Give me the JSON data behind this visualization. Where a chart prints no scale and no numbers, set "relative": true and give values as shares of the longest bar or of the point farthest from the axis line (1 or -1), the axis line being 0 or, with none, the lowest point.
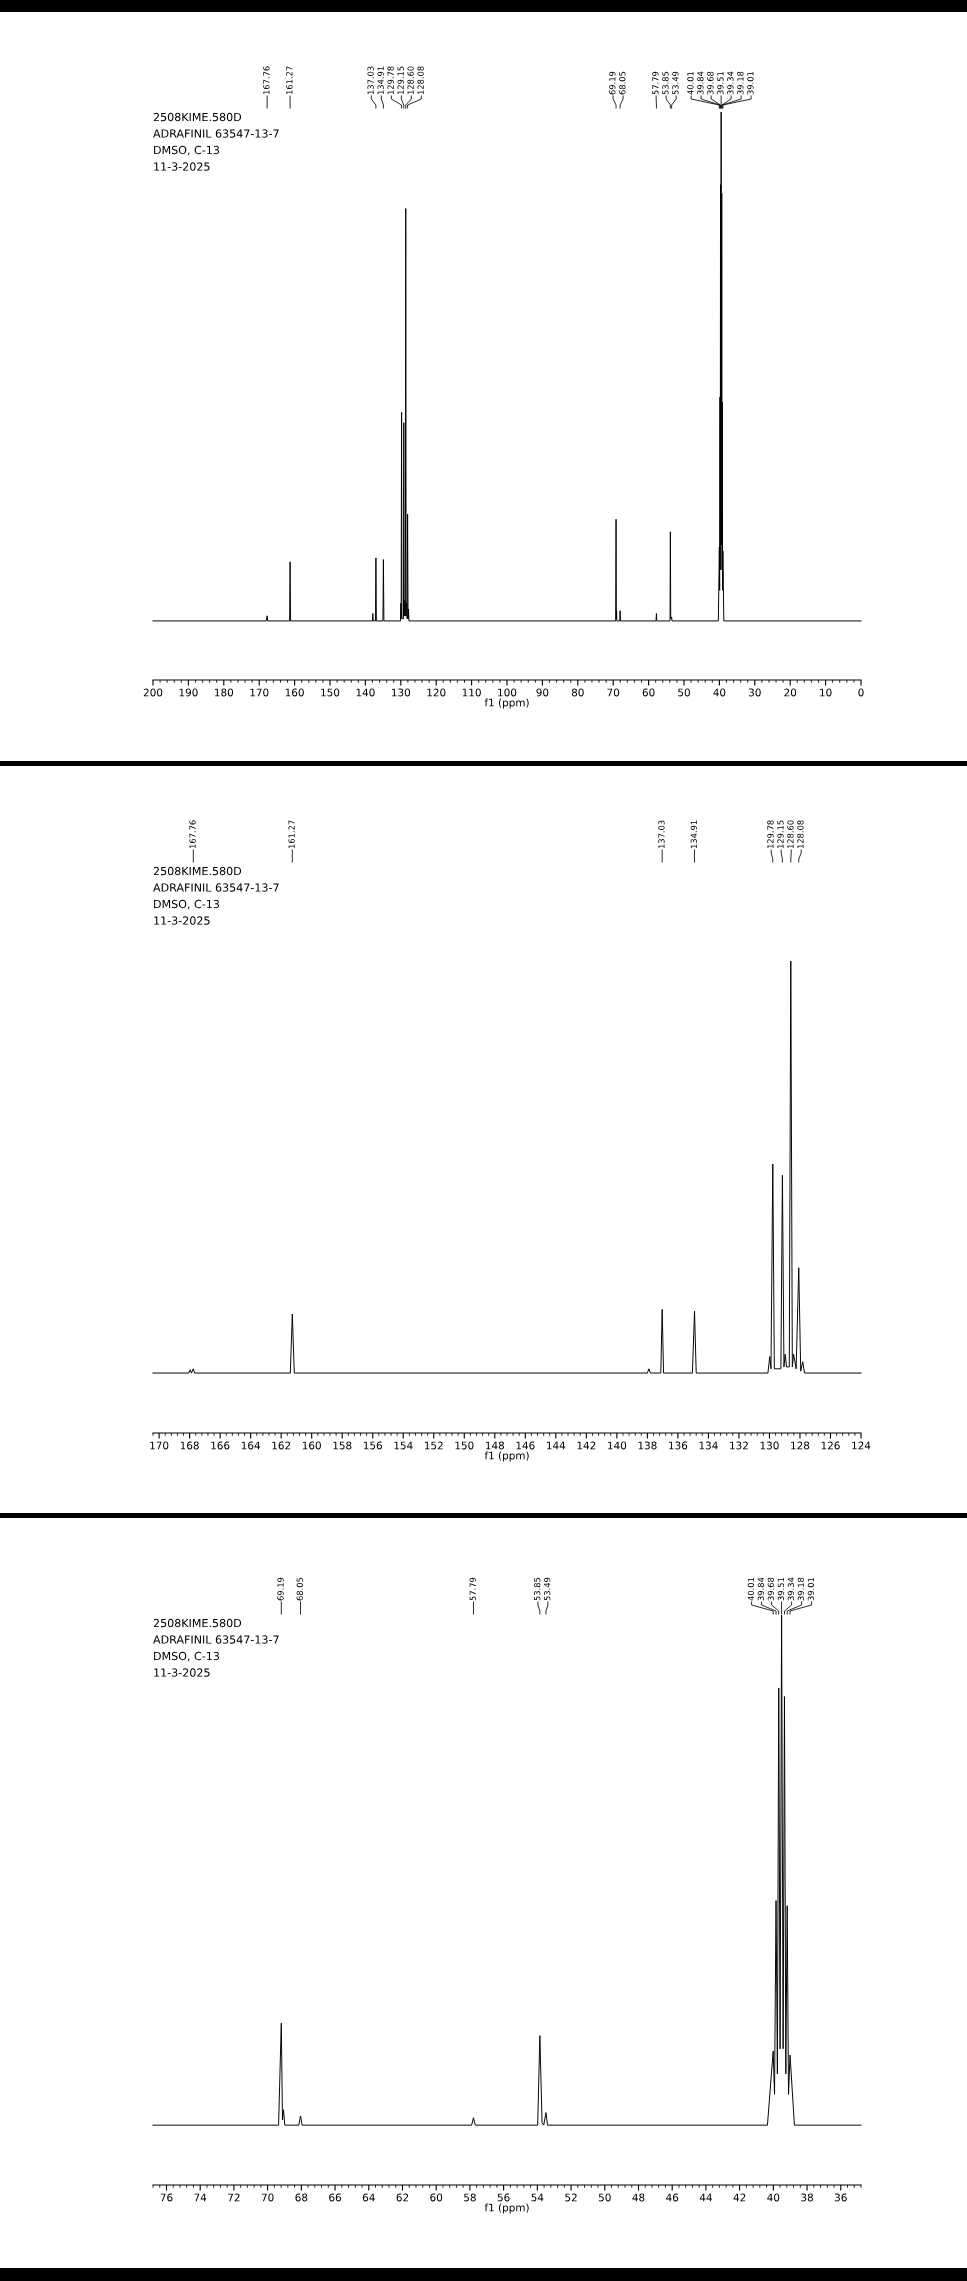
{
  "chart_data": [
    {
      "type": "line",
      "xlabel": "f1 (ppm)",
      "color": "#000000",
      "relative": true,
      "x": [
        200,
        168.0,
        167.76,
        167.6,
        161.4,
        161.27,
        161.14,
        138.0,
        137.9,
        137.8,
        137.15,
        137.03,
        136.9,
        135.05,
        134.91,
        134.78,
        130.1,
        129.98,
        129.9,
        129.78,
        129.68,
        129.25,
        129.15,
        129.05,
        128.95,
        128.85,
        128.7,
        128.6,
        128.5,
        128.4,
        128.2,
        128.08,
        127.95,
        127.82,
        127.7,
        69.3,
        69.19,
        69.12,
        69.05,
        68.98,
        68.15,
        68.05,
        67.95,
        57.9,
        57.79,
        57.7,
        53.95,
        53.85,
        53.75,
        53.49,
        53.4,
        40.3,
        40.01,
        39.93,
        39.84,
        39.76,
        39.68,
        39.6,
        39.51,
        39.42,
        39.34,
        39.26,
        39.18,
        39.1,
        39.01,
        38.75,
        0
      ],
      "values": [
        0.104,
        0.104,
        0.113,
        0.104,
        0.104,
        0.208,
        0.104,
        0.104,
        0.117,
        0.104,
        0.104,
        0.215,
        0.104,
        0.104,
        0.212,
        0.104,
        0.104,
        0.135,
        0.108,
        0.471,
        0.108,
        0.108,
        0.453,
        0.113,
        0.14,
        0.113,
        0.113,
        0.83,
        0.113,
        0.136,
        0.108,
        0.292,
        0.108,
        0.125,
        0.104,
        0.104,
        0.283,
        0.108,
        0.122,
        0.104,
        0.104,
        0.122,
        0.104,
        0.104,
        0.117,
        0.104,
        0.104,
        0.261,
        0.108,
        0.111,
        0.104,
        0.104,
        0.234,
        0.158,
        0.498,
        0.194,
        0.872,
        0.238,
        1,
        0.238,
        0.857,
        0.194,
        0.489,
        0.158,
        0.227,
        0.104,
        0.104
      ],
      "xlim": [
        200,
        0
      ],
      "xticks": [
        0,
        {
          "value": 2,
          "label": null
        },
        {
          "value": 4,
          "label": null
        },
        {
          "value": 6,
          "label": null
        },
        {
          "value": 8,
          "label": null
        },
        10,
        {
          "value": 12,
          "label": null
        },
        {
          "value": 14,
          "label": null
        },
        {
          "value": 16,
          "label": null
        },
        {
          "value": 18,
          "label": null
        },
        20,
        {
          "value": 22,
          "label": null
        },
        {
          "value": 24,
          "label": null
        },
        {
          "value": 26,
          "label": null
        },
        {
          "value": 28,
          "label": null
        },
        30,
        {
          "value": 32,
          "label": null
        },
        {
          "value": 34,
          "label": null
        },
        {
          "value": 36,
          "label": null
        },
        {
          "value": 38,
          "label": null
        },
        40,
        {
          "value": 42,
          "label": null
        },
        {
          "value": 44,
          "label": null
        },
        {
          "value": 46,
          "label": null
        },
        {
          "value": 48,
          "label": null
        },
        50,
        {
          "value": 52,
          "label": null
        },
        {
          "value": 54,
          "label": null
        },
        {
          "value": 56,
          "label": null
        },
        {
          "value": 58,
          "label": null
        },
        60,
        {
          "value": 62,
          "label": null
        },
        {
          "value": 64,
          "label": null
        },
        {
          "value": 66,
          "label": null
        },
        {
          "value": 68,
          "label": null
        },
        70,
        {
          "value": 72,
          "label": null
        },
        {
          "value": 74,
          "label": null
        },
        {
          "value": 76,
          "label": null
        },
        {
          "value": 78,
          "label": null
        },
        80,
        {
          "value": 82,
          "label": null
        },
        {
          "value": 84,
          "label": null
        },
        {
          "value": 86,
          "label": null
        },
        {
          "value": 88,
          "label": null
        },
        90,
        {
          "value": 92,
          "label": null
        },
        {
          "value": 94,
          "label": null
        },
        {
          "value": 96,
          "label": null
        },
        {
          "value": 98,
          "label": null
        },
        100,
        {
          "value": 102,
          "label": null
        },
        {
          "value": 104,
          "label": null
        },
        {
          "value": 106,
          "label": null
        },
        {
          "value": 108,
          "label": null
        },
        110,
        {
          "value": 112,
          "label": null
        },
        {
          "value": 114,
          "label": null
        },
        {
          "value": 116,
          "label": null
        },
        {
          "value": 118,
          "label": null
        },
        120,
        {
          "value": 122,
          "label": null
        },
        {
          "value": 124,
          "label": null
        },
        {
          "value": 126,
          "label": null
        },
        {
          "value": 128,
          "label": null
        },
        130,
        {
          "value": 132,
          "label": null
        },
        {
          "value": 134,
          "label": null
        },
        {
          "value": 136,
          "label": null
        },
        {
          "value": 138,
          "label": null
        },
        140,
        {
          "value": 142,
          "label": null
        },
        {
          "value": 144,
          "label": null
        },
        {
          "value": 146,
          "label": null
        },
        {
          "value": 148,
          "label": null
        },
        150,
        {
          "value": 152,
          "label": null
        },
        {
          "value": 154,
          "label": null
        },
        {
          "value": 156,
          "label": null
        },
        {
          "value": 158,
          "label": null
        },
        160,
        {
          "value": 162,
          "label": null
        },
        {
          "value": 164,
          "label": null
        },
        {
          "value": 166,
          "label": null
        },
        {
          "value": 168,
          "label": null
        },
        170,
        {
          "value": 172,
          "label": null
        },
        {
          "value": 174,
          "label": null
        },
        {
          "value": 176,
          "label": null
        },
        {
          "value": 178,
          "label": null
        },
        180,
        {
          "value": 182,
          "label": null
        },
        {
          "value": 184,
          "label": null
        },
        {
          "value": 186,
          "label": null
        },
        {
          "value": 188,
          "label": null
        },
        190,
        {
          "value": 192,
          "label": null
        },
        {
          "value": 194,
          "label": null
        },
        {
          "value": 196,
          "label": null
        },
        {
          "value": 198,
          "label": null
        },
        200
      ],
      "annotations": [
        "2508KIME.580D",
        "ADRAFINIL 63547-13-7",
        "DMSO, C-13",
        "11-3-2025",
        {
          "text": "167.76",
          "x": 167.76
        },
        {
          "text": "161.27",
          "x": 161.27
        },
        {
          "text": "137.03",
          "x": 137.03
        },
        {
          "text": "134.91",
          "x": 134.91
        },
        {
          "text": "129.78",
          "x": 129.78
        },
        {
          "text": "129.15",
          "x": 129.15
        },
        {
          "text": "128.60",
          "x": 128.6
        },
        {
          "text": "128.08",
          "x": 128.08
        },
        {
          "text": "69.19",
          "x": 69.19
        },
        {
          "text": "68.05",
          "x": 68.05
        },
        {
          "text": "57.79",
          "x": 57.79
        },
        {
          "text": "53.85",
          "x": 53.85
        },
        {
          "text": "53.49",
          "x": 53.49
        },
        {
          "text": "40.01",
          "x": 40.01
        },
        {
          "text": "39.84",
          "x": 39.84
        },
        {
          "text": "39.68",
          "x": 39.68
        },
        {
          "text": "39.51",
          "x": 39.51
        },
        {
          "text": "39.34",
          "x": 39.34
        },
        {
          "text": "39.18",
          "x": 39.18
        },
        {
          "text": "39.01",
          "x": 39.01
        }
      ]
    },
    {
      "type": "line",
      "xlabel": "f1 (ppm)",
      "color": "#000000",
      "relative": true,
      "x": [
        170.4,
        168.05,
        167.97,
        167.88,
        167.76,
        167.67,
        161.4,
        161.27,
        161.14,
        138.0,
        137.9,
        137.8,
        137.12,
        137.03,
        136.94,
        135.05,
        134.91,
        134.8,
        130.1,
        129.98,
        129.9,
        129.78,
        129.68,
        129.25,
        129.15,
        129.05,
        128.97,
        128.88,
        128.7,
        128.6,
        128.5,
        128.42,
        128.25,
        128.08,
        127.95,
        127.82,
        127.7,
        124
      ],
      "values": [
        0.127,
        0.127,
        0.134,
        0.127,
        0.136,
        0.127,
        0.127,
        0.252,
        0.127,
        0.127,
        0.136,
        0.127,
        0.127,
        0.262,
        0.127,
        0.127,
        0.258,
        0.127,
        0.127,
        0.162,
        0.136,
        0.57,
        0.136,
        0.136,
        0.546,
        0.14,
        0.167,
        0.14,
        0.14,
        1,
        0.14,
        0.167,
        0.136,
        0.35,
        0.131,
        0.151,
        0.127,
        0.127
      ],
      "xlim": [
        170.4,
        124
      ],
      "xticks": [
        124,
        {
          "value": 124.4,
          "label": null
        },
        {
          "value": 124.8,
          "label": null
        },
        {
          "value": 125.2,
          "label": null
        },
        {
          "value": 125.6,
          "label": null
        },
        126,
        {
          "value": 126.4,
          "label": null
        },
        {
          "value": 126.8,
          "label": null
        },
        {
          "value": 127.2,
          "label": null
        },
        {
          "value": 127.6,
          "label": null
        },
        128,
        {
          "value": 128.4,
          "label": null
        },
        {
          "value": 128.8,
          "label": null
        },
        {
          "value": 129.2,
          "label": null
        },
        {
          "value": 129.6,
          "label": null
        },
        130,
        {
          "value": 130.4,
          "label": null
        },
        {
          "value": 130.8,
          "label": null
        },
        {
          "value": 131.2,
          "label": null
        },
        {
          "value": 131.6,
          "label": null
        },
        132,
        {
          "value": 132.4,
          "label": null
        },
        {
          "value": 132.8,
          "label": null
        },
        {
          "value": 133.2,
          "label": null
        },
        {
          "value": 133.6,
          "label": null
        },
        134,
        {
          "value": 134.4,
          "label": null
        },
        {
          "value": 134.8,
          "label": null
        },
        {
          "value": 135.2,
          "label": null
        },
        {
          "value": 135.6,
          "label": null
        },
        136,
        {
          "value": 136.4,
          "label": null
        },
        {
          "value": 136.8,
          "label": null
        },
        {
          "value": 137.2,
          "label": null
        },
        {
          "value": 137.6,
          "label": null
        },
        138,
        {
          "value": 138.4,
          "label": null
        },
        {
          "value": 138.8,
          "label": null
        },
        {
          "value": 139.2,
          "label": null
        },
        {
          "value": 139.6,
          "label": null
        },
        140,
        {
          "value": 140.4,
          "label": null
        },
        {
          "value": 140.8,
          "label": null
        },
        {
          "value": 141.2,
          "label": null
        },
        {
          "value": 141.6,
          "label": null
        },
        142,
        {
          "value": 142.4,
          "label": null
        },
        {
          "value": 142.8,
          "label": null
        },
        {
          "value": 143.2,
          "label": null
        },
        {
          "value": 143.6,
          "label": null
        },
        144,
        {
          "value": 144.4,
          "label": null
        },
        {
          "value": 144.8,
          "label": null
        },
        {
          "value": 145.2,
          "label": null
        },
        {
          "value": 145.6,
          "label": null
        },
        146,
        {
          "value": 146.4,
          "label": null
        },
        {
          "value": 146.8,
          "label": null
        },
        {
          "value": 147.2,
          "label": null
        },
        {
          "value": 147.6,
          "label": null
        },
        148,
        {
          "value": 148.4,
          "label": null
        },
        {
          "value": 148.8,
          "label": null
        },
        {
          "value": 149.2,
          "label": null
        },
        {
          "value": 149.6,
          "label": null
        },
        150,
        {
          "value": 150.4,
          "label": null
        },
        {
          "value": 150.8,
          "label": null
        },
        {
          "value": 151.2,
          "label": null
        },
        {
          "value": 151.6,
          "label": null
        },
        152,
        {
          "value": 152.4,
          "label": null
        },
        {
          "value": 152.8,
          "label": null
        },
        {
          "value": 153.2,
          "label": null
        },
        {
          "value": 153.6,
          "label": null
        },
        154,
        {
          "value": 154.4,
          "label": null
        },
        {
          "value": 154.8,
          "label": null
        },
        {
          "value": 155.2,
          "label": null
        },
        {
          "value": 155.6,
          "label": null
        },
        156,
        {
          "value": 156.4,
          "label": null
        },
        {
          "value": 156.8,
          "label": null
        },
        {
          "value": 157.2,
          "label": null
        },
        {
          "value": 157.6,
          "label": null
        },
        158,
        {
          "value": 158.4,
          "label": null
        },
        {
          "value": 158.8,
          "label": null
        },
        {
          "value": 159.2,
          "label": null
        },
        {
          "value": 159.6,
          "label": null
        },
        160,
        {
          "value": 160.4,
          "label": null
        },
        {
          "value": 160.8,
          "label": null
        },
        {
          "value": 161.2,
          "label": null
        },
        {
          "value": 161.6,
          "label": null
        },
        162,
        {
          "value": 162.4,
          "label": null
        },
        {
          "value": 162.8,
          "label": null
        },
        {
          "value": 163.2,
          "label": null
        },
        {
          "value": 163.6,
          "label": null
        },
        164,
        {
          "value": 164.4,
          "label": null
        },
        {
          "value": 164.8,
          "label": null
        },
        {
          "value": 165.2,
          "label": null
        },
        {
          "value": 165.6,
          "label": null
        },
        166,
        {
          "value": 166.4,
          "label": null
        },
        {
          "value": 166.8,
          "label": null
        },
        {
          "value": 167.2,
          "label": null
        },
        {
          "value": 167.6,
          "label": null
        },
        168,
        {
          "value": 168.4,
          "label": null
        },
        {
          "value": 168.8,
          "label": null
        },
        {
          "value": 169.2,
          "label": null
        },
        {
          "value": 169.6,
          "label": null
        },
        170,
        {
          "value": 170.4,
          "label": null
        }
      ],
      "annotations": [
        "2508KIME.580D",
        "ADRAFINIL 63547-13-7",
        "DMSO, C-13",
        "11-3-2025",
        {
          "text": "167.76",
          "x": 167.76
        },
        {
          "text": "161.27",
          "x": 161.27
        },
        {
          "text": "137.03",
          "x": 137.03
        },
        {
          "text": "134.91",
          "x": 134.91
        },
        {
          "text": "129.78",
          "x": 129.78
        },
        {
          "text": "129.15",
          "x": 129.15
        },
        {
          "text": "128.60",
          "x": 128.6
        },
        {
          "text": "128.08",
          "x": 128.08
        }
      ]
    },
    {
      "type": "line",
      "xlabel": "f1 (ppm)",
      "color": "#000000",
      "relative": true,
      "x": [
        76.8,
        69.35,
        69.19,
        69.12,
        69.06,
        68.98,
        68.15,
        68.05,
        67.95,
        57.9,
        57.79,
        57.68,
        53.98,
        53.85,
        53.72,
        53.62,
        53.49,
        53.4,
        40.35,
        40.01,
        39.93,
        39.84,
        39.76,
        39.68,
        39.6,
        39.51,
        39.42,
        39.34,
        39.26,
        39.18,
        39.1,
        39.01,
        38.75,
        34.8
      ],
      "values": [
        0.105,
        0.105,
        0.284,
        0.114,
        0.132,
        0.105,
        0.105,
        0.121,
        0.105,
        0.105,
        0.118,
        0.105,
        0.105,
        0.262,
        0.109,
        0.105,
        0.127,
        0.105,
        0.105,
        0.235,
        0.159,
        0.499,
        0.195,
        0.872,
        0.239,
        1,
        0.239,
        0.857,
        0.195,
        0.49,
        0.159,
        0.228,
        0.105,
        0.105
      ],
      "xlim": [
        76.8,
        34.8
      ],
      "xticks": [
        {
          "value": 34.8,
          "label": null
        },
        {
          "value": 35.2,
          "label": null
        },
        {
          "value": 35.6,
          "label": null
        },
        36,
        {
          "value": 36.4,
          "label": null
        },
        {
          "value": 36.8,
          "label": null
        },
        {
          "value": 37.2,
          "label": null
        },
        {
          "value": 37.6,
          "label": null
        },
        38,
        {
          "value": 38.4,
          "label": null
        },
        {
          "value": 38.8,
          "label": null
        },
        {
          "value": 39.2,
          "label": null
        },
        {
          "value": 39.6,
          "label": null
        },
        40,
        {
          "value": 40.4,
          "label": null
        },
        {
          "value": 40.8,
          "label": null
        },
        {
          "value": 41.2,
          "label": null
        },
        {
          "value": 41.6,
          "label": null
        },
        42,
        {
          "value": 42.4,
          "label": null
        },
        {
          "value": 42.8,
          "label": null
        },
        {
          "value": 43.2,
          "label": null
        },
        {
          "value": 43.6,
          "label": null
        },
        44,
        {
          "value": 44.4,
          "label": null
        },
        {
          "value": 44.8,
          "label": null
        },
        {
          "value": 45.2,
          "label": null
        },
        {
          "value": 45.6,
          "label": null
        },
        46,
        {
          "value": 46.4,
          "label": null
        },
        {
          "value": 46.8,
          "label": null
        },
        {
          "value": 47.2,
          "label": null
        },
        {
          "value": 47.6,
          "label": null
        },
        48,
        {
          "value": 48.4,
          "label": null
        },
        {
          "value": 48.8,
          "label": null
        },
        {
          "value": 49.2,
          "label": null
        },
        {
          "value": 49.6,
          "label": null
        },
        50,
        {
          "value": 50.4,
          "label": null
        },
        {
          "value": 50.8,
          "label": null
        },
        {
          "value": 51.2,
          "label": null
        },
        {
          "value": 51.6,
          "label": null
        },
        52,
        {
          "value": 52.4,
          "label": null
        },
        {
          "value": 52.8,
          "label": null
        },
        {
          "value": 53.2,
          "label": null
        },
        {
          "value": 53.6,
          "label": null
        },
        54,
        {
          "value": 54.4,
          "label": null
        },
        {
          "value": 54.8,
          "label": null
        },
        {
          "value": 55.2,
          "label": null
        },
        {
          "value": 55.6,
          "label": null
        },
        56,
        {
          "value": 56.4,
          "label": null
        },
        {
          "value": 56.8,
          "label": null
        },
        {
          "value": 57.2,
          "label": null
        },
        {
          "value": 57.6,
          "label": null
        },
        58,
        {
          "value": 58.4,
          "label": null
        },
        {
          "value": 58.8,
          "label": null
        },
        {
          "value": 59.2,
          "label": null
        },
        {
          "value": 59.6,
          "label": null
        },
        60,
        {
          "value": 60.4,
          "label": null
        },
        {
          "value": 60.8,
          "label": null
        },
        {
          "value": 61.2,
          "label": null
        },
        {
          "value": 61.6,
          "label": null
        },
        62,
        {
          "value": 62.4,
          "label": null
        },
        {
          "value": 62.8,
          "label": null
        },
        {
          "value": 63.2,
          "label": null
        },
        {
          "value": 63.6,
          "label": null
        },
        64,
        {
          "value": 64.4,
          "label": null
        },
        {
          "value": 64.8,
          "label": null
        },
        {
          "value": 65.2,
          "label": null
        },
        {
          "value": 65.6,
          "label": null
        },
        66,
        {
          "value": 66.4,
          "label": null
        },
        {
          "value": 66.8,
          "label": null
        },
        {
          "value": 67.2,
          "label": null
        },
        {
          "value": 67.6,
          "label": null
        },
        68,
        {
          "value": 68.4,
          "label": null
        },
        {
          "value": 68.8,
          "label": null
        },
        {
          "value": 69.2,
          "label": null
        },
        {
          "value": 69.6,
          "label": null
        },
        70,
        {
          "value": 70.4,
          "label": null
        },
        {
          "value": 70.8,
          "label": null
        },
        {
          "value": 71.2,
          "label": null
        },
        {
          "value": 71.6,
          "label": null
        },
        72,
        {
          "value": 72.4,
          "label": null
        },
        {
          "value": 72.8,
          "label": null
        },
        {
          "value": 73.2,
          "label": null
        },
        {
          "value": 73.6,
          "label": null
        },
        74,
        {
          "value": 74.4,
          "label": null
        },
        {
          "value": 74.8,
          "label": null
        },
        {
          "value": 75.2,
          "label": null
        },
        {
          "value": 75.6,
          "label": null
        },
        76,
        {
          "value": 76.4,
          "label": null
        },
        {
          "value": 76.8,
          "label": null
        }
      ],
      "annotations": [
        "2508KIME.580D",
        "ADRAFINIL 63547-13-7",
        "DMSO, C-13",
        "11-3-2025",
        {
          "text": "69.19",
          "x": 69.19
        },
        {
          "text": "68.05",
          "x": 68.05
        },
        {
          "text": "57.79",
          "x": 57.79
        },
        {
          "text": "53.85",
          "x": 53.85
        },
        {
          "text": "53.49",
          "x": 53.49
        },
        {
          "text": "40.01",
          "x": 40.01
        },
        {
          "text": "39.84",
          "x": 39.84
        },
        {
          "text": "39.68",
          "x": 39.68
        },
        {
          "text": "39.51",
          "x": 39.51
        },
        {
          "text": "39.34",
          "x": 39.34
        },
        {
          "text": "39.18",
          "x": 39.18
        },
        {
          "text": "39.01",
          "x": 39.01
        }
      ]
    }
  ]
}
